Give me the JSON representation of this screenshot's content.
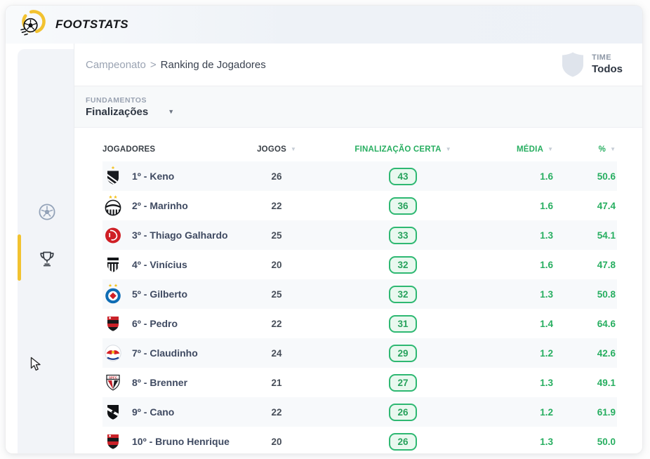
{
  "colors": {
    "accent_green": "#27ae60",
    "green_box_border": "#2eb872",
    "green_box_bg": "#e9f8ef",
    "brand_yellow": "#f2c230",
    "dark_text": "#2e3642",
    "name_text": "#3f4a61",
    "muted_text": "#9aa3b2"
  },
  "brand": {
    "name": "FOOTSTATS",
    "logo_icon": "soccer-ball-logo-icon"
  },
  "sidebar": {
    "items": [
      {
        "id": "campeonatos",
        "icon": "soccer-ball-icon",
        "active": false
      },
      {
        "id": "ranking",
        "icon": "trophy-icon",
        "active": true
      }
    ]
  },
  "breadcrumb": {
    "parent": "Campeonato",
    "separator": ">",
    "current": "Ranking de Jogadores"
  },
  "team_filter": {
    "label": "TIME",
    "value": "Todos",
    "icon": "shield-icon"
  },
  "fundamentos": {
    "label": "FUNDAMENTOS",
    "value": "Finalizações",
    "icon": "chevron-down-icon"
  },
  "table": {
    "headers": {
      "jogadores": "JOGADORES",
      "jogos": "JOGOS",
      "finalizacao": "FINALIZAÇÃO CERTA",
      "media": "MÉDIA",
      "pct": "%"
    },
    "rows": [
      {
        "rank": "1º",
        "player": "Keno",
        "team": "atletico-mg",
        "jogos": "26",
        "finalizacao": "43",
        "media": "1.6",
        "pct": "50.6"
      },
      {
        "rank": "2º",
        "player": "Marinho",
        "team": "santos",
        "jogos": "22",
        "finalizacao": "36",
        "media": "1.6",
        "pct": "47.4"
      },
      {
        "rank": "3º",
        "player": "Thiago Galhardo",
        "team": "internacional",
        "jogos": "25",
        "finalizacao": "33",
        "media": "1.3",
        "pct": "54.1"
      },
      {
        "rank": "4º",
        "player": "Vinícius",
        "team": "ceara",
        "jogos": "20",
        "finalizacao": "32",
        "media": "1.6",
        "pct": "47.8"
      },
      {
        "rank": "5º",
        "player": "Gilberto",
        "team": "bahia",
        "jogos": "25",
        "finalizacao": "32",
        "media": "1.3",
        "pct": "50.8"
      },
      {
        "rank": "6º",
        "player": "Pedro",
        "team": "flamengo",
        "jogos": "22",
        "finalizacao": "31",
        "media": "1.4",
        "pct": "64.6"
      },
      {
        "rank": "7º",
        "player": "Claudinho",
        "team": "bragantino",
        "jogos": "24",
        "finalizacao": "29",
        "media": "1.2",
        "pct": "42.6"
      },
      {
        "rank": "8º",
        "player": "Brenner",
        "team": "sao-paulo",
        "jogos": "21",
        "finalizacao": "27",
        "media": "1.3",
        "pct": "49.1"
      },
      {
        "rank": "9º",
        "player": "Cano",
        "team": "vasco",
        "jogos": "22",
        "finalizacao": "26",
        "media": "1.2",
        "pct": "61.9"
      },
      {
        "rank": "10º",
        "player": "Bruno Henrique",
        "team": "flamengo",
        "jogos": "20",
        "finalizacao": "26",
        "media": "1.3",
        "pct": "50.0"
      }
    ]
  }
}
